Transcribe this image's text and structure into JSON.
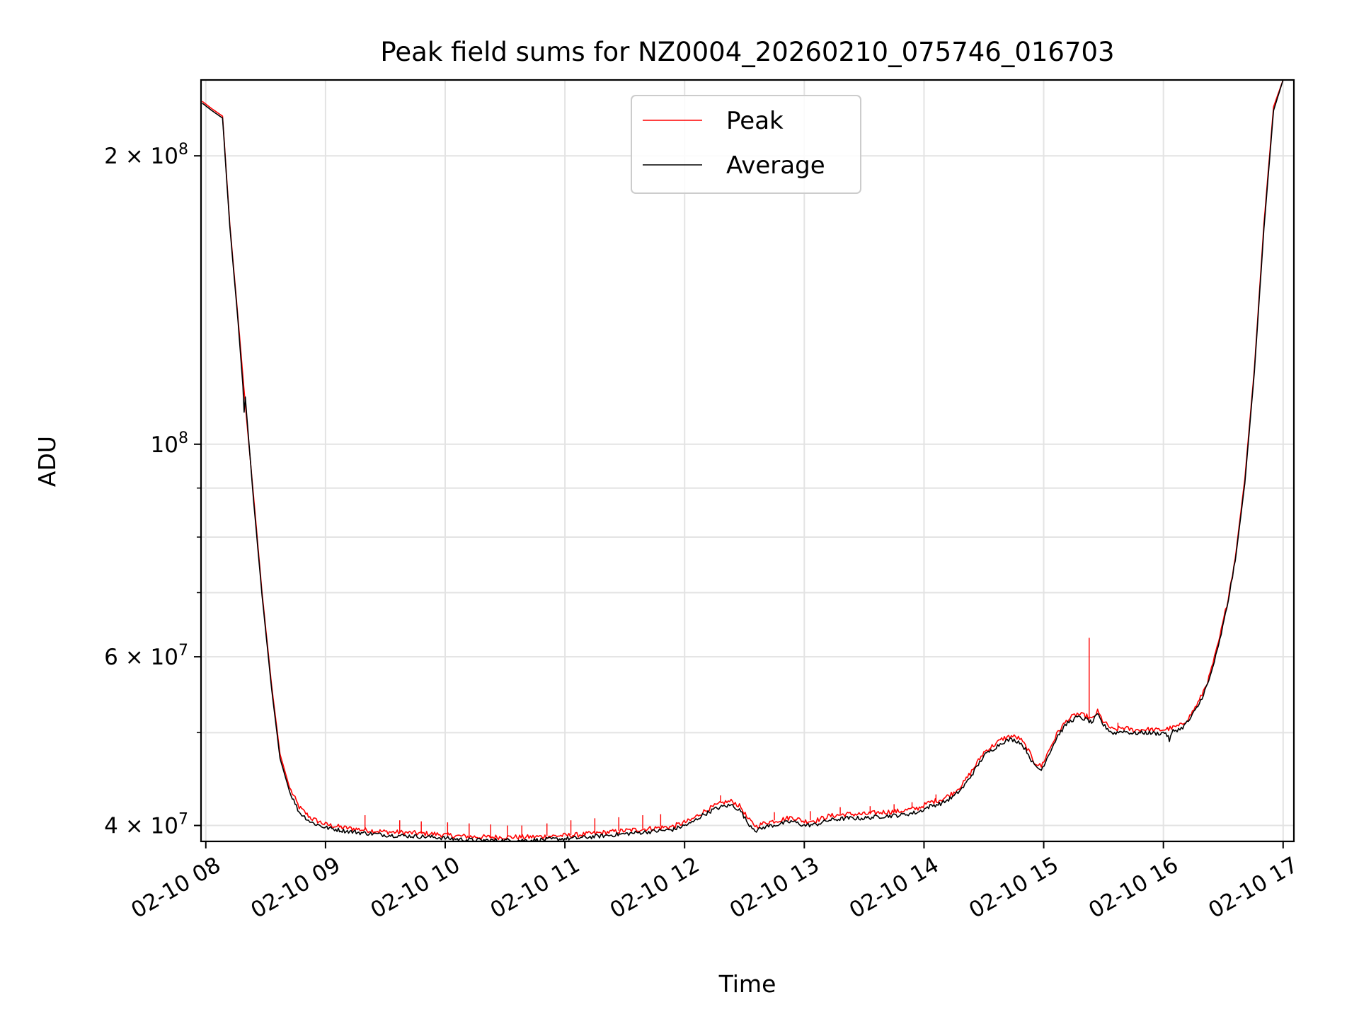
{
  "chart_data": {
    "type": "line",
    "title": "Peak field sums for NZ0004_20260210_075746_016703",
    "xlabel": "Time",
    "ylabel": "ADU",
    "yscale": "log",
    "ylim": [
      38500000,
      240000000
    ],
    "xlim_hours": [
      7.96,
      17.09
    ],
    "grid": true,
    "legend_position": "upper-center",
    "x_ticks": [
      {
        "hour": 8,
        "label": "02-10 08"
      },
      {
        "hour": 9,
        "label": "02-10 09"
      },
      {
        "hour": 10,
        "label": "02-10 10"
      },
      {
        "hour": 11,
        "label": "02-10 11"
      },
      {
        "hour": 12,
        "label": "02-10 12"
      },
      {
        "hour": 13,
        "label": "02-10 13"
      },
      {
        "hour": 14,
        "label": "02-10 14"
      },
      {
        "hour": 15,
        "label": "02-10 15"
      },
      {
        "hour": 16,
        "label": "02-10 16"
      },
      {
        "hour": 17,
        "label": "02-10 17"
      }
    ],
    "y_major_ticks": [
      {
        "value": 40000000,
        "mantissa": "4",
        "exponent": "7"
      },
      {
        "value": 60000000,
        "mantissa": "6",
        "exponent": "7"
      },
      {
        "value": 100000000,
        "mantissa": "",
        "exponent": "8"
      },
      {
        "value": 200000000,
        "mantissa": "2",
        "exponent": "8"
      }
    ],
    "y_minor_ticks": [
      50000000,
      70000000,
      80000000,
      90000000
    ],
    "series": [
      {
        "name": "Peak",
        "color": "#ff0000",
        "points": [
          [
            7.97,
            228000000
          ],
          [
            8.05,
            224000000
          ],
          [
            8.14,
            220000000
          ],
          [
            8.2,
            170000000
          ],
          [
            8.27,
            135000000
          ],
          [
            8.33,
            110000000
          ],
          [
            8.4,
            88000000
          ],
          [
            8.47,
            70000000
          ],
          [
            8.55,
            56000000
          ],
          [
            8.62,
            47500000
          ],
          [
            8.7,
            43800000
          ],
          [
            8.78,
            41800000
          ],
          [
            8.88,
            40700000
          ],
          [
            9.0,
            40100000
          ],
          [
            9.15,
            39800000
          ],
          [
            9.3,
            39600000
          ],
          [
            9.5,
            39400000
          ],
          [
            9.7,
            39300000
          ],
          [
            9.9,
            39200000
          ],
          [
            10.1,
            39000000
          ],
          [
            10.3,
            38900000
          ],
          [
            10.5,
            38900000
          ],
          [
            10.7,
            38900000
          ],
          [
            10.9,
            39000000
          ],
          [
            11.1,
            39100000
          ],
          [
            11.3,
            39300000
          ],
          [
            11.5,
            39500000
          ],
          [
            11.7,
            39700000
          ],
          [
            11.9,
            39900000
          ],
          [
            12.05,
            40500000
          ],
          [
            12.15,
            41300000
          ],
          [
            12.25,
            41900000
          ],
          [
            12.33,
            42300000
          ],
          [
            12.4,
            42400000
          ],
          [
            12.47,
            41800000
          ],
          [
            12.53,
            40600000
          ],
          [
            12.6,
            39900000
          ],
          [
            12.68,
            40300000
          ],
          [
            12.78,
            40500000
          ],
          [
            12.9,
            40800000
          ],
          [
            13.0,
            40400000
          ],
          [
            13.1,
            40500000
          ],
          [
            13.2,
            40900000
          ],
          [
            13.35,
            41100000
          ],
          [
            13.5,
            41100000
          ],
          [
            13.65,
            41300000
          ],
          [
            13.8,
            41400000
          ],
          [
            13.95,
            41700000
          ],
          [
            14.05,
            42300000
          ],
          [
            14.15,
            42600000
          ],
          [
            14.25,
            43300000
          ],
          [
            14.33,
            44300000
          ],
          [
            14.42,
            46000000
          ],
          [
            14.5,
            47700000
          ],
          [
            14.58,
            48500000
          ],
          [
            14.66,
            49300000
          ],
          [
            14.73,
            49600000
          ],
          [
            14.8,
            49300000
          ],
          [
            14.86,
            48200000
          ],
          [
            14.92,
            46600000
          ],
          [
            14.98,
            46100000
          ],
          [
            15.05,
            48100000
          ],
          [
            15.12,
            50100000
          ],
          [
            15.2,
            51600000
          ],
          [
            15.28,
            52300000
          ],
          [
            15.36,
            52000000
          ],
          [
            15.4,
            51600000
          ],
          [
            15.45,
            52600000
          ],
          [
            15.5,
            51300000
          ],
          [
            15.58,
            50300000
          ],
          [
            15.66,
            50600000
          ],
          [
            15.75,
            50300000
          ],
          [
            15.85,
            50400000
          ],
          [
            15.95,
            50300000
          ],
          [
            16.02,
            50400000
          ],
          [
            16.08,
            50600000
          ],
          [
            16.15,
            50900000
          ],
          [
            16.22,
            52000000
          ],
          [
            16.3,
            54000000
          ],
          [
            16.38,
            57000000
          ],
          [
            16.46,
            62000000
          ],
          [
            16.53,
            68000000
          ],
          [
            16.6,
            76000000
          ],
          [
            16.68,
            92000000
          ],
          [
            16.76,
            120000000
          ],
          [
            16.84,
            170000000
          ],
          [
            16.92,
            225000000
          ],
          [
            17.0,
            240000000
          ],
          [
            17.09,
            240000000
          ]
        ],
        "spikes": [
          [
            9.33,
            41000000
          ],
          [
            9.62,
            40500000
          ],
          [
            9.8,
            40400000
          ],
          [
            10.02,
            40300000
          ],
          [
            10.2,
            40200000
          ],
          [
            10.38,
            40100000
          ],
          [
            10.52,
            40000000
          ],
          [
            10.64,
            40000000
          ],
          [
            10.85,
            40200000
          ],
          [
            11.05,
            40500000
          ],
          [
            11.25,
            40700000
          ],
          [
            11.45,
            40800000
          ],
          [
            11.65,
            41000000
          ],
          [
            11.8,
            41100000
          ],
          [
            12.3,
            43000000
          ],
          [
            12.75,
            41300000
          ],
          [
            13.05,
            41400000
          ],
          [
            13.3,
            41800000
          ],
          [
            13.55,
            41900000
          ],
          [
            13.75,
            42100000
          ],
          [
            13.9,
            42300000
          ],
          [
            14.1,
            43100000
          ],
          [
            15.38,
            62800000
          ],
          [
            15.62,
            51200000
          ]
        ]
      },
      {
        "name": "Average",
        "color": "#000000",
        "points": [
          [
            7.97,
            227000000
          ],
          [
            8.05,
            223000000
          ],
          [
            8.14,
            219000000
          ],
          [
            8.2,
            169000000
          ],
          [
            8.27,
            134000000
          ],
          [
            8.31,
            115000000
          ],
          [
            8.32,
            108000000
          ],
          [
            8.33,
            112000000
          ],
          [
            8.4,
            87000000
          ],
          [
            8.47,
            69500000
          ],
          [
            8.55,
            55500000
          ],
          [
            8.62,
            47000000
          ],
          [
            8.7,
            43400000
          ],
          [
            8.78,
            41300000
          ],
          [
            8.88,
            40300000
          ],
          [
            9.0,
            39800000
          ],
          [
            9.15,
            39500000
          ],
          [
            9.3,
            39300000
          ],
          [
            9.5,
            39100000
          ],
          [
            9.7,
            39000000
          ],
          [
            9.9,
            38900000
          ],
          [
            10.1,
            38700000
          ],
          [
            10.3,
            38600000
          ],
          [
            10.5,
            38600000
          ],
          [
            10.7,
            38600000
          ],
          [
            10.9,
            38700000
          ],
          [
            11.1,
            38800000
          ],
          [
            11.3,
            39000000
          ],
          [
            11.5,
            39200000
          ],
          [
            11.7,
            39400000
          ],
          [
            11.9,
            39600000
          ],
          [
            12.05,
            40200000
          ],
          [
            12.15,
            41000000
          ],
          [
            12.25,
            41600000
          ],
          [
            12.33,
            41900000
          ],
          [
            12.4,
            42000000
          ],
          [
            12.47,
            41400000
          ],
          [
            12.53,
            40200000
          ],
          [
            12.6,
            39500000
          ],
          [
            12.68,
            39900000
          ],
          [
            12.78,
            40100000
          ],
          [
            12.9,
            40400000
          ],
          [
            13.0,
            40000000
          ],
          [
            13.1,
            40100000
          ],
          [
            13.2,
            40500000
          ],
          [
            13.35,
            40700000
          ],
          [
            13.5,
            40700000
          ],
          [
            13.65,
            40900000
          ],
          [
            13.8,
            41000000
          ],
          [
            13.95,
            41300000
          ],
          [
            14.05,
            41900000
          ],
          [
            14.15,
            42200000
          ],
          [
            14.25,
            42900000
          ],
          [
            14.33,
            43900000
          ],
          [
            14.42,
            45600000
          ],
          [
            14.5,
            47300000
          ],
          [
            14.58,
            48100000
          ],
          [
            14.66,
            48900000
          ],
          [
            14.73,
            49200000
          ],
          [
            14.8,
            48900000
          ],
          [
            14.86,
            47800000
          ],
          [
            14.92,
            46200000
          ],
          [
            14.98,
            45700000
          ],
          [
            15.05,
            47700000
          ],
          [
            15.12,
            49700000
          ],
          [
            15.2,
            51200000
          ],
          [
            15.28,
            51900000
          ],
          [
            15.36,
            51600000
          ],
          [
            15.4,
            51200000
          ],
          [
            15.45,
            52200000
          ],
          [
            15.5,
            50900000
          ],
          [
            15.58,
            49900000
          ],
          [
            15.66,
            50200000
          ],
          [
            15.75,
            49900000
          ],
          [
            15.85,
            50000000
          ],
          [
            15.95,
            49900000
          ],
          [
            16.02,
            50000000
          ],
          [
            16.05,
            49100000
          ],
          [
            16.08,
            50200000
          ],
          [
            16.15,
            50500000
          ],
          [
            16.22,
            51600000
          ],
          [
            16.3,
            53600000
          ],
          [
            16.38,
            56600000
          ],
          [
            16.46,
            61500000
          ],
          [
            16.53,
            67500000
          ],
          [
            16.6,
            75500000
          ],
          [
            16.68,
            91000000
          ],
          [
            16.76,
            119000000
          ],
          [
            16.84,
            168000000
          ],
          [
            16.92,
            223000000
          ],
          [
            17.0,
            240000000
          ],
          [
            17.09,
            240000000
          ]
        ]
      }
    ]
  }
}
